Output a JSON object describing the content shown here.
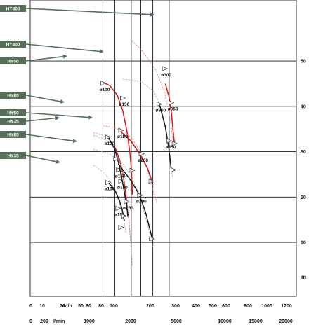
{
  "chart_data": {
    "type": "line",
    "title": "",
    "y_unit": "m",
    "y_ticks": [
      10,
      20,
      30,
      40,
      50
    ],
    "ylim": [
      -3,
      56
    ],
    "x_scale": "log",
    "x_grid_flow": [
      60,
      100,
      200,
      300,
      500,
      1000
    ],
    "flow_m3h": {
      "unit": "m³/h",
      "tick_labels": [
        "0",
        "10",
        "20",
        "50",
        "60",
        "80",
        "100",
        "200",
        "300",
        "400",
        "500",
        "600",
        "800",
        "1000",
        "1200"
      ]
    },
    "flow_lmin": {
      "unit": "l/min",
      "tick_labels": [
        "0",
        "200",
        "1000",
        "2000",
        "5000",
        "10000",
        "15000",
        "20000"
      ]
    },
    "tags": [
      {
        "label": "HY400",
        "color": "#56705a"
      },
      {
        "label": "HY400",
        "color": "#56705a"
      },
      {
        "label": "HY50",
        "color": "#56705a"
      },
      {
        "label": "HY85",
        "color": "#56705a"
      },
      {
        "label": "HY50",
        "color": "#56705a"
      },
      {
        "label": "HY35",
        "color": "#56705a"
      },
      {
        "label": "HY85",
        "color": "#56705a"
      },
      {
        "label": "HY35",
        "color": "#56705a"
      }
    ],
    "series": [
      {
        "color": "#e07a7a",
        "dashed": true,
        "x": [
          205,
          320,
          560,
          800,
          1000,
          1180
        ],
        "y": [
          54.5,
          52.2,
          48.2,
          43.5,
          38.5,
          32.5
        ]
      },
      {
        "color": "#d01818",
        "dashed": false,
        "x": [
          850,
          1000,
          1100,
          1180,
          1250
        ],
        "y": [
          45.0,
          42.0,
          38.5,
          34.7,
          31.8
        ]
      },
      {
        "color": "#a8a8a8",
        "dashed": true,
        "x": [
          140,
          300,
          500,
          650,
          800,
          1000,
          1150
        ],
        "y": [
          46.0,
          45.5,
          43.5,
          41.0,
          37.2,
          30.5,
          24.5
        ]
      },
      {
        "color": "#1a1a1a",
        "dashed": false,
        "x": [
          660,
          850,
          1000,
          1080
        ],
        "y": [
          40.5,
          35.5,
          30.2,
          26.4
        ]
      },
      {
        "color": "#d01818",
        "dashed": false,
        "x": [
          62,
          80,
          110,
          140,
          170,
          190,
          200,
          205,
          210
        ],
        "y": [
          45.2,
          44.6,
          42.5,
          39.0,
          34.0,
          29.5,
          26.5,
          24.0,
          20.5
        ]
      },
      {
        "color": "#e07a7a",
        "dashed": true,
        "x": [
          60,
          100,
          200,
          300,
          400,
          600
        ],
        "y": [
          35.7,
          35.3,
          33.2,
          29.8,
          26.0,
          18.5
        ]
      },
      {
        "color": "#d01818",
        "dashed": false,
        "x": [
          120,
          200,
          300,
          400,
          480
        ],
        "y": [
          34.7,
          32.3,
          29.1,
          26.3,
          23.6
        ]
      },
      {
        "color": "#e07a7a",
        "dashed": true,
        "x": [
          40,
          60,
          80,
          100,
          120,
          150,
          175,
          200
        ],
        "y": [
          34.2,
          33.6,
          32.5,
          30.5,
          28.0,
          23.0,
          16.5,
          8.0
        ]
      },
      {
        "color": "#d01818",
        "dashed": false,
        "x": [
          100,
          120,
          135,
          150,
          165,
          172
        ],
        "y": [
          31.0,
          28.5,
          26.2,
          23.0,
          19.0,
          15.6
        ]
      },
      {
        "color": "#a8a8a8",
        "dashed": true,
        "x": [
          40,
          60,
          80,
          100,
          130,
          160,
          185,
          210
        ],
        "y": [
          33.6,
          32.9,
          32.0,
          30.5,
          27.0,
          21.5,
          14.5,
          4.8
        ]
      },
      {
        "color": "#1a1a1a",
        "dashed": false,
        "x": [
          75,
          100,
          120,
          140,
          160,
          175
        ],
        "y": [
          33.3,
          30.5,
          27.0,
          23.0,
          19.0,
          15.7
        ]
      },
      {
        "color": "#a8a8a8",
        "dashed": true,
        "x": [
          40,
          80,
          150,
          250,
          400,
          500
        ],
        "y": [
          30.5,
          29.5,
          27.0,
          22.0,
          14.0,
          9.0
        ]
      },
      {
        "color": "#1a1a1a",
        "dashed": false,
        "x": [
          115,
          160,
          200,
          280,
          370,
          450,
          490
        ],
        "y": [
          27.3,
          25.1,
          23.5,
          20.6,
          16.5,
          12.5,
          10.5
        ]
      },
      {
        "color": "#a8a8a8",
        "dashed": true,
        "x": [
          40,
          60,
          80,
          100,
          120,
          150,
          160
        ],
        "y": [
          27.0,
          25.6,
          23.8,
          21.4,
          18.8,
          14.2,
          12.0
        ]
      },
      {
        "color": "#1a1a1a",
        "dashed": false,
        "x": [
          75,
          100,
          120,
          135,
          150
        ],
        "y": [
          23.3,
          21.5,
          19.4,
          17.4,
          14.7
        ]
      }
    ],
    "triangles": [
      {
        "x": 830,
        "y": 48.3,
        "label": "ø300"
      },
      {
        "x": 1100,
        "y": 40.8,
        "label": "ø350"
      },
      {
        "x": 1260,
        "y": 31.8,
        "label": ""
      },
      {
        "x": 61,
        "y": 45.1,
        "label": "ø100"
      },
      {
        "x": 140,
        "y": 41.8,
        "label": "ø150"
      },
      {
        "x": 210,
        "y": 25.9,
        "label": ""
      },
      {
        "x": 660,
        "y": 40.5,
        "label": "ø300"
      },
      {
        "x": 1000,
        "y": 32.4,
        "label": "ø350"
      },
      {
        "x": 1200,
        "y": 26.0,
        "label": ""
      },
      {
        "x": 130,
        "y": 34.7,
        "label": "ø150"
      },
      {
        "x": 310,
        "y": 29.5,
        "label": "ø200"
      },
      {
        "x": 470,
        "y": 23.5,
        "label": ""
      },
      {
        "x": 75,
        "y": 33.2,
        "label": "ø100"
      },
      {
        "x": 105,
        "y": 28.4,
        "label": ""
      },
      {
        "x": 118,
        "y": 26.0,
        "label": "ø150"
      },
      {
        "x": 165,
        "y": 19.0,
        "label": "ø150"
      },
      {
        "x": 130,
        "y": 23.5,
        "label": "ø150"
      },
      {
        "x": 290,
        "y": 20.4,
        "label": "ø200"
      },
      {
        "x": 480,
        "y": 10.8,
        "label": ""
      },
      {
        "x": 75,
        "y": 23.2,
        "label": "ø100"
      },
      {
        "x": 115,
        "y": 17.5,
        "label": "ø150"
      },
      {
        "x": 148,
        "y": 15.8,
        "label": ""
      },
      {
        "x": 130,
        "y": 13.3,
        "label": ""
      }
    ]
  }
}
